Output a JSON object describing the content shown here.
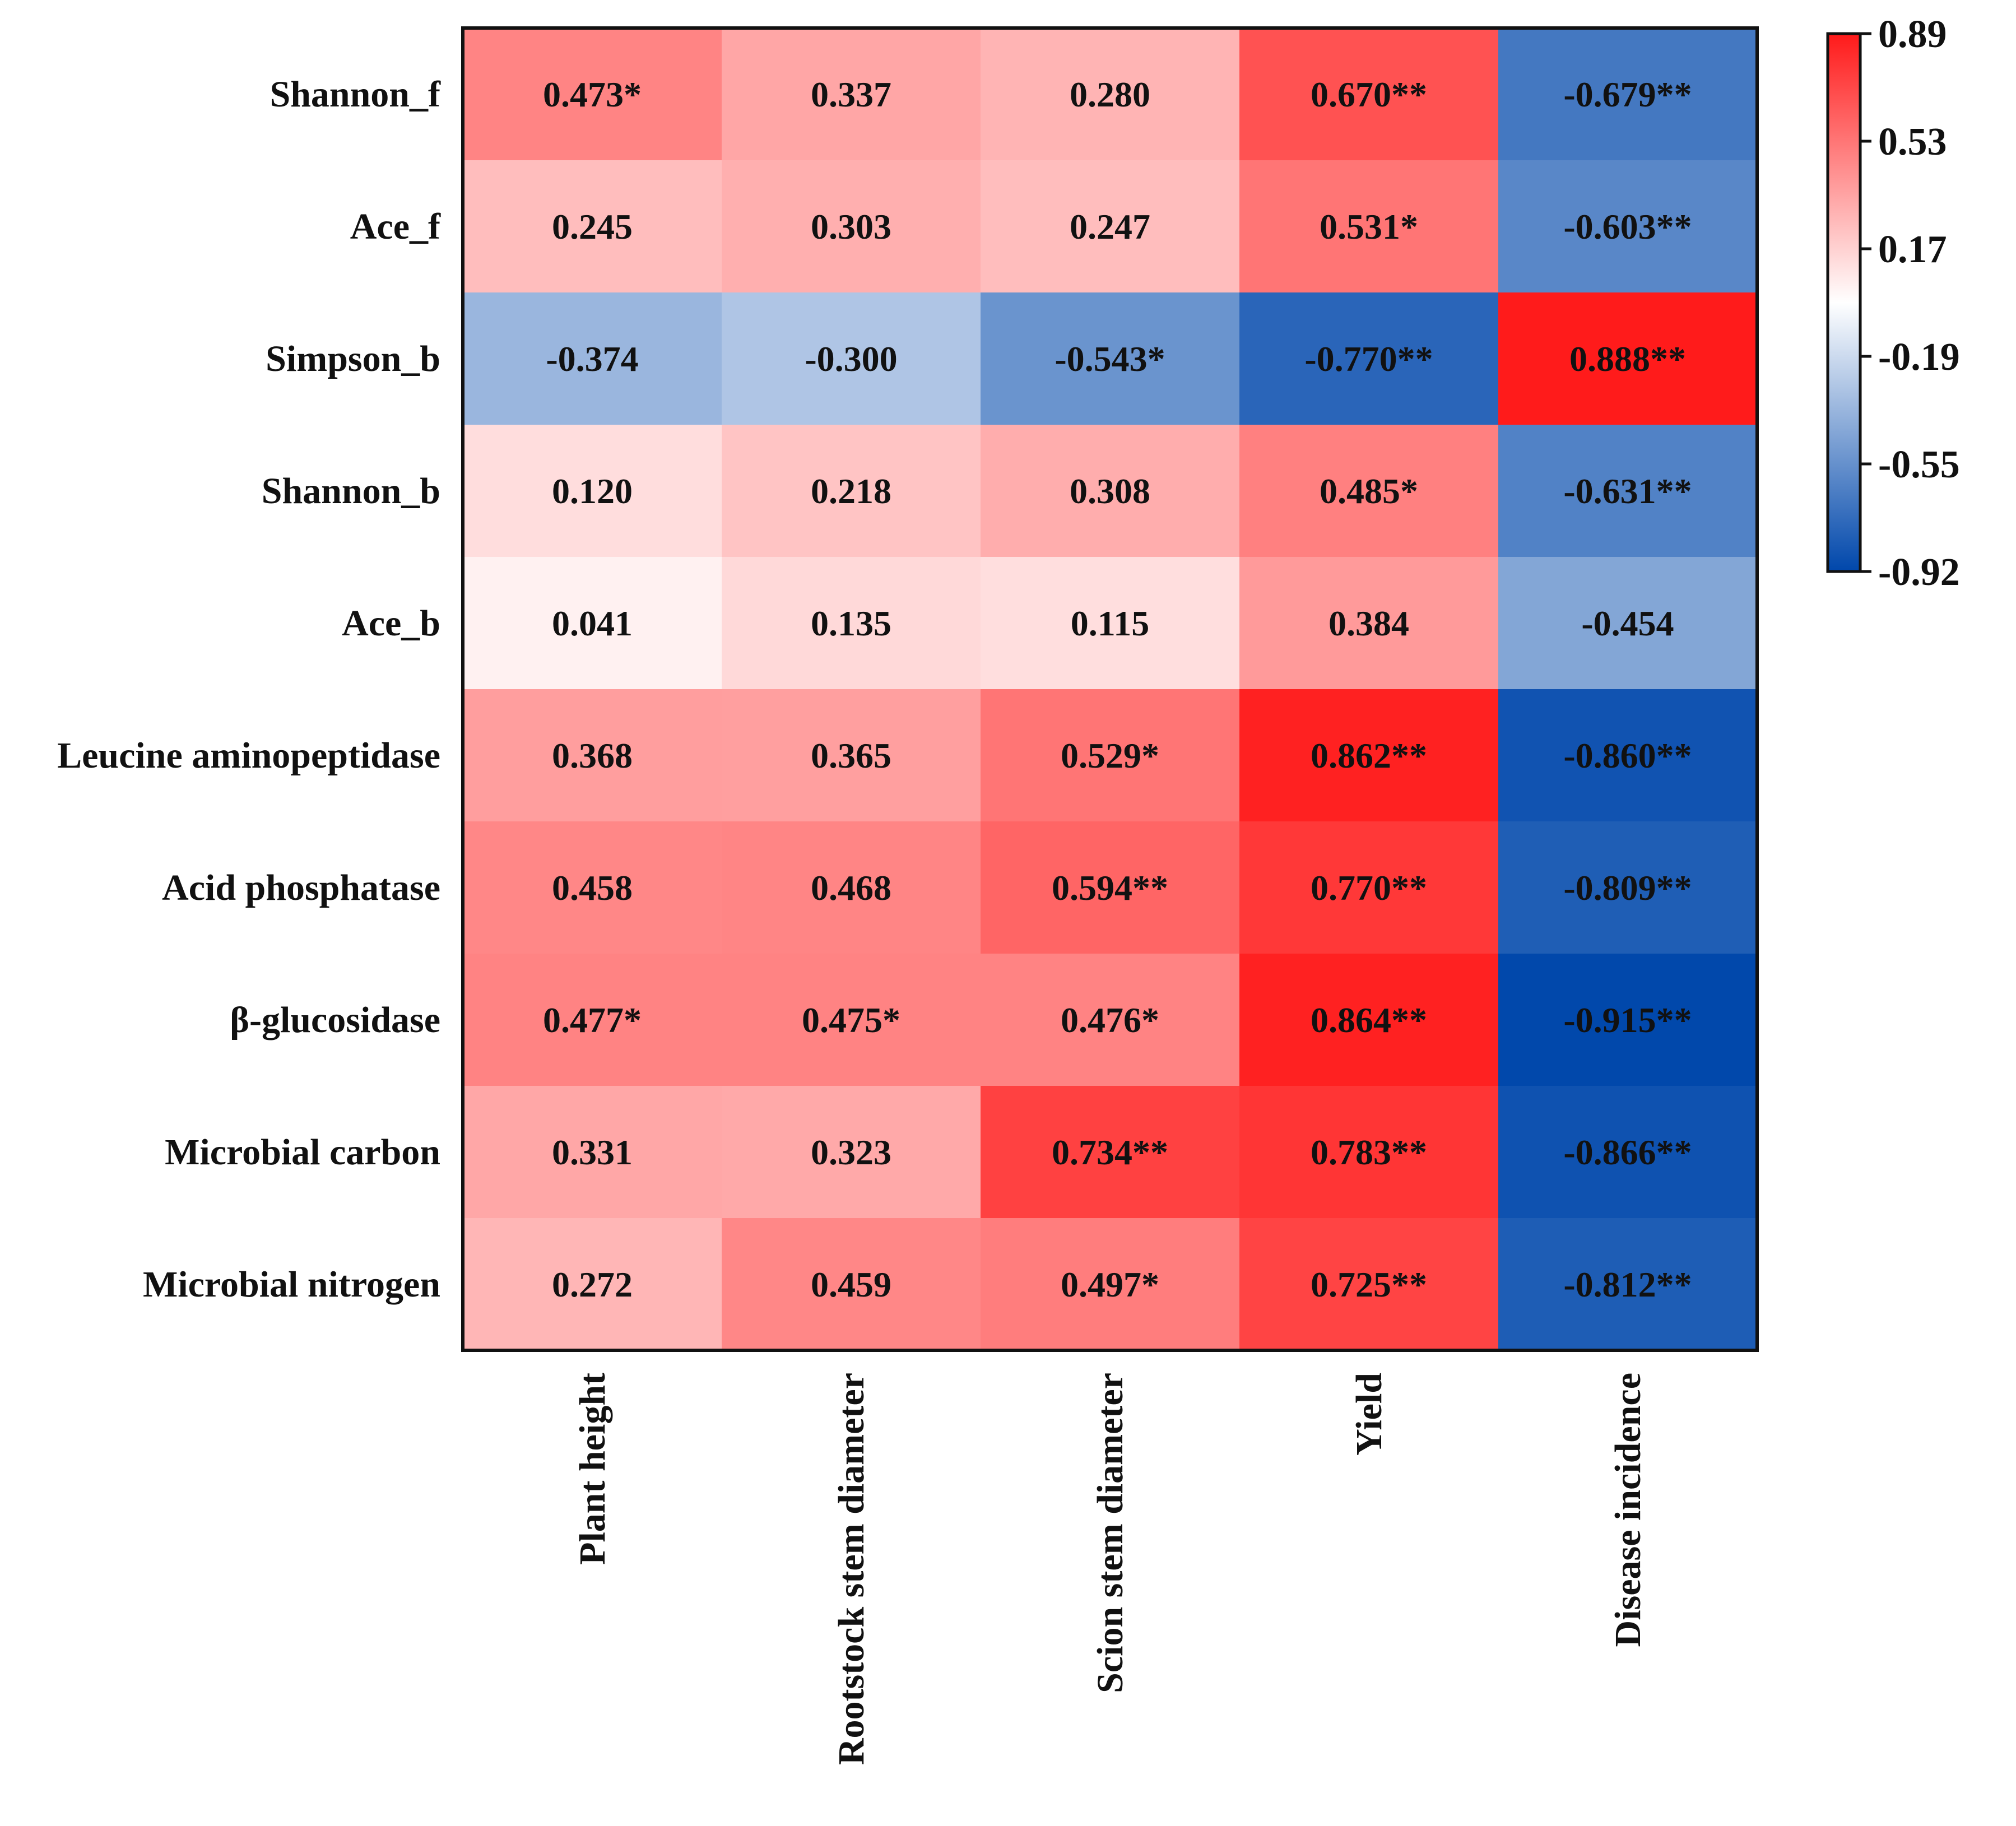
{
  "chart_data": {
    "type": "heatmap",
    "rows": [
      "Shannon_f",
      "Ace_f",
      "Simpson_b",
      "Shannon_b",
      "Ace_b",
      "Leucine aminopeptidase",
      "Acid phosphatase",
      "β-glucosidase",
      "Microbial carbon",
      "Microbial nitrogen"
    ],
    "columns": [
      "Plant height",
      "Rootstock stem diameter",
      "Scion stem diameter",
      "Yield",
      "Disease incidence"
    ],
    "values": [
      [
        0.473,
        0.337,
        0.28,
        0.67,
        -0.679
      ],
      [
        0.245,
        0.303,
        0.247,
        0.531,
        -0.603
      ],
      [
        -0.374,
        -0.3,
        -0.543,
        -0.77,
        0.888
      ],
      [
        0.12,
        0.218,
        0.308,
        0.485,
        -0.631
      ],
      [
        0.041,
        0.135,
        0.115,
        0.384,
        -0.454
      ],
      [
        0.368,
        0.365,
        0.529,
        0.862,
        -0.86
      ],
      [
        0.458,
        0.468,
        0.594,
        0.77,
        -0.809
      ],
      [
        0.477,
        0.475,
        0.476,
        0.864,
        -0.915
      ],
      [
        0.331,
        0.323,
        0.734,
        0.783,
        -0.866
      ],
      [
        0.272,
        0.459,
        0.497,
        0.725,
        -0.812
      ]
    ],
    "cell_labels": [
      [
        "0.473*",
        "0.337",
        "0.280",
        "0.670**",
        "-0.679**"
      ],
      [
        "0.245",
        "0.303",
        "0.247",
        "0.531*",
        "-0.603**"
      ],
      [
        "-0.374",
        "-0.300",
        "-0.543*",
        "-0.770**",
        "0.888**"
      ],
      [
        "0.120",
        "0.218",
        "0.308",
        "0.485*",
        "-0.631**"
      ],
      [
        "0.041",
        "0.135",
        "0.115",
        "0.384",
        "-0.454"
      ],
      [
        "0.368",
        "0.365",
        "0.529*",
        "0.862**",
        "-0.860**"
      ],
      [
        "0.458",
        "0.468",
        "0.594**",
        "0.770**",
        "-0.809**"
      ],
      [
        "0.477*",
        "0.475*",
        "0.476*",
        "0.864**",
        "-0.915**"
      ],
      [
        "0.331",
        "0.323",
        "0.734**",
        "0.783**",
        "-0.866**"
      ],
      [
        "0.272",
        "0.459",
        "0.497*",
        "0.725**",
        "-0.812**"
      ]
    ],
    "color_scale": {
      "min": -0.92,
      "max": 0.89,
      "min_color": "#0047ab",
      "mid_color": "#ffffff",
      "max_color": "#ff1a1a",
      "ticks": [
        "0.89",
        "0.53",
        "0.17",
        "-0.19",
        "-0.55",
        "-0.92"
      ]
    },
    "title": "",
    "xlabel": "",
    "ylabel": ""
  }
}
